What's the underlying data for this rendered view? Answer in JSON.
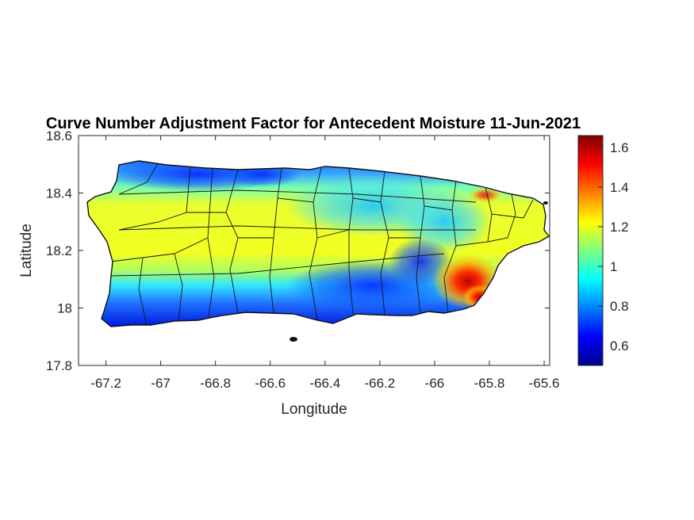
{
  "chart_data": {
    "type": "heatmap",
    "title": "Curve Number Adjustment Factor for Antecedent Moisture 11-Jun-2021",
    "xlabel": "Longitude",
    "ylabel": "Latitude",
    "xlim": [
      -67.3,
      -65.58
    ],
    "ylim": [
      17.8,
      18.6
    ],
    "xticks": [
      -67.2,
      -67,
      -66.8,
      -66.6,
      -66.4,
      -66.2,
      -66,
      -65.8,
      -65.6
    ],
    "xtick_labels": [
      "-67.2",
      "-67",
      "-66.8",
      "-66.6",
      "-66.4",
      "-66.2",
      "-66",
      "-65.8",
      "-65.6"
    ],
    "yticks": [
      17.8,
      18,
      18.2,
      18.4,
      18.6
    ],
    "ytick_labels": [
      "17.8",
      "18",
      "18.2",
      "18.4",
      "18.6"
    ],
    "colorbar": {
      "colormap": "jet",
      "range": [
        0.5,
        1.66
      ],
      "ticks": [
        0.6,
        0.8,
        1,
        1.2,
        1.4,
        1.6
      ],
      "tick_labels": [
        "0.6",
        "0.8",
        "1",
        "1.2",
        "1.4",
        "1.6"
      ]
    },
    "region": "Puerto Rico municipalities",
    "grid": false
  }
}
